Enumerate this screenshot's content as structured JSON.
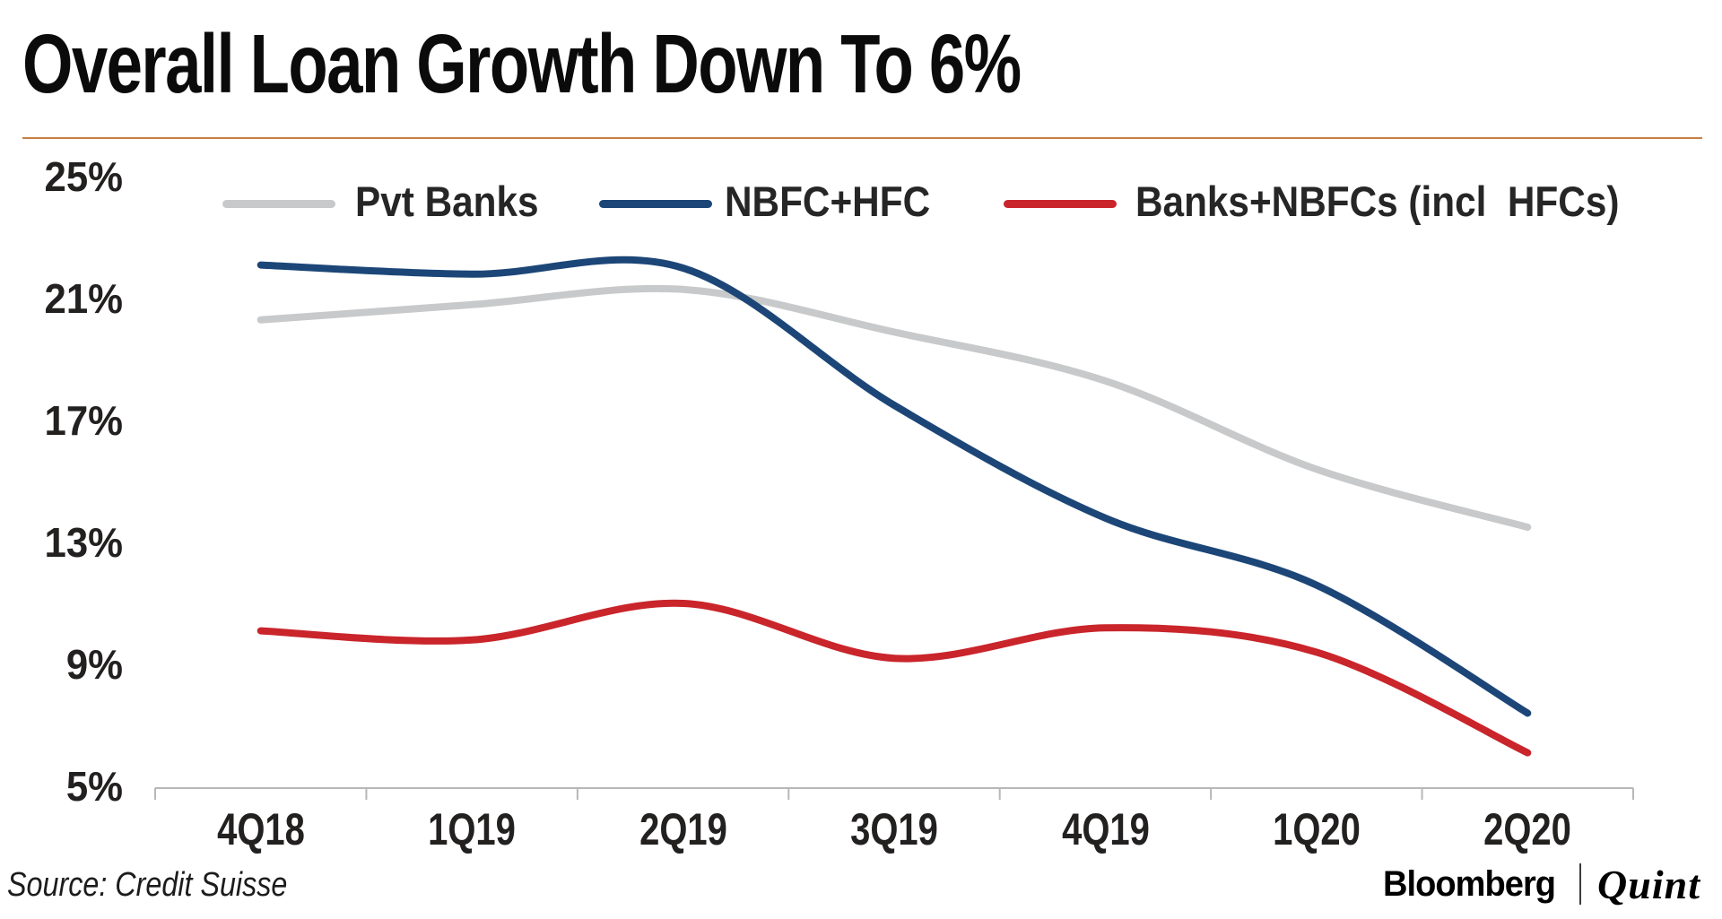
{
  "title": "Overall Loan Growth Down To 6%",
  "accent_rule_color": "#c87f42",
  "chart_data": {
    "type": "line",
    "categories": [
      "4Q18",
      "1Q19",
      "2Q19",
      "3Q19",
      "4Q19",
      "1Q20",
      "2Q20"
    ],
    "series": [
      {
        "name": "Pvt Banks",
        "color": "#c8c9ca",
        "values": [
          20.3,
          20.8,
          21.3,
          19.9,
          18.3,
          15.4,
          13.5
        ]
      },
      {
        "name": "NBFC+HFC",
        "color": "#1c4677",
        "values": [
          22.1,
          21.8,
          22.0,
          17.5,
          13.8,
          11.6,
          7.4
        ]
      },
      {
        "name": "Banks+NBFCs (incl  HFCs)",
        "color": "#c9252b",
        "values": [
          10.1,
          9.8,
          11.0,
          9.2,
          10.2,
          9.4,
          6.1
        ]
      }
    ],
    "ylim": [
      5,
      25
    ],
    "y_tick_labels": [
      "25%",
      "21%",
      "17%",
      "13%",
      "9%",
      "5%"
    ],
    "xlabel": "",
    "ylabel": "",
    "grid": false,
    "legend_position": "top",
    "axis_color": "#b7b7b7",
    "line_width": 8
  },
  "footer": {
    "source": "Source: Credit Suisse",
    "brand_left": "Bloomberg",
    "brand_right": "Quint"
  }
}
